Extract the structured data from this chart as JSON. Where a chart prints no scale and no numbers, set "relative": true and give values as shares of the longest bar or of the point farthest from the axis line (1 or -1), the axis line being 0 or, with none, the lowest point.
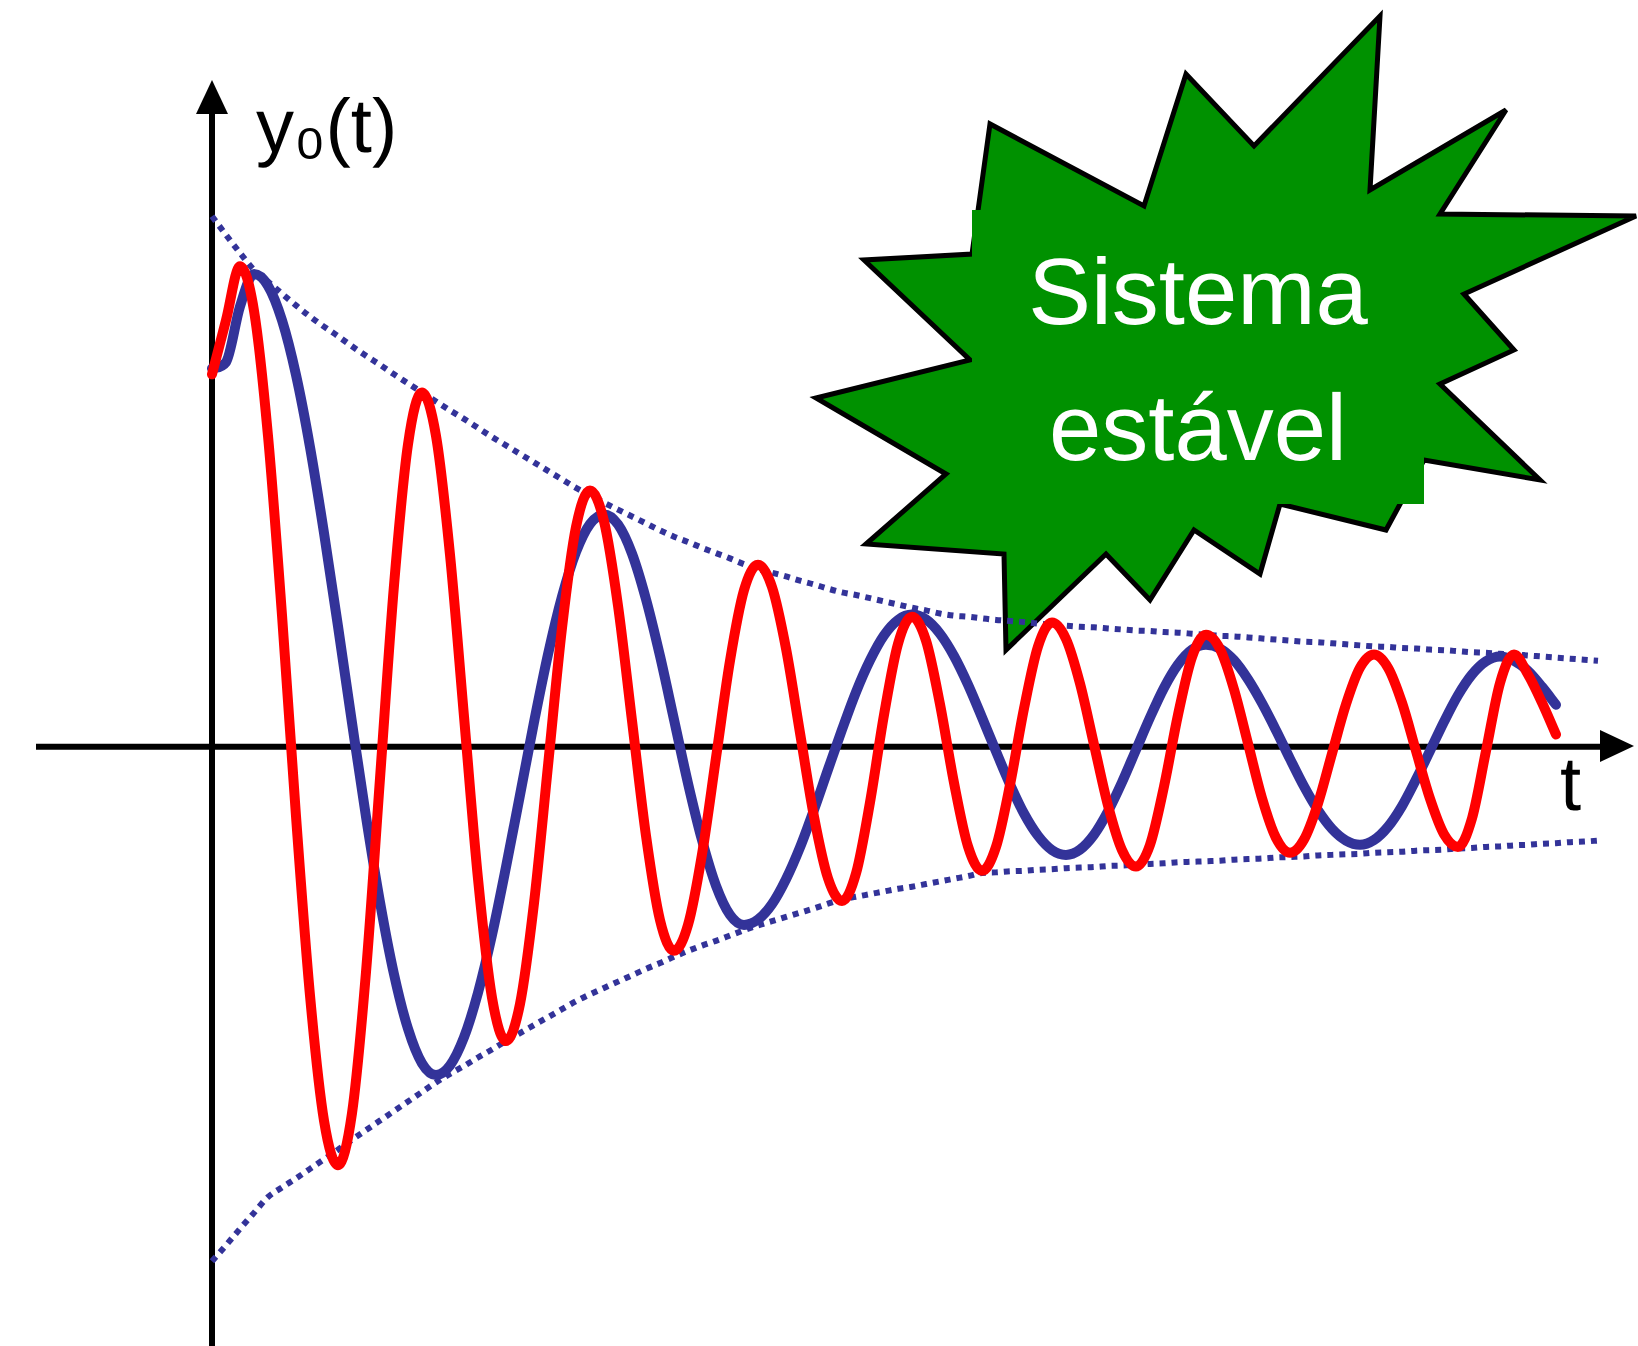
{
  "chart_data": {
    "type": "line",
    "xlabel": "t",
    "ylabel": "y₀(t)",
    "annotations": [
      "Sistema estável"
    ],
    "relative": true,
    "marker": "none",
    "legend": false,
    "categories": [
      null,
      null,
      null,
      null,
      null,
      null,
      null,
      null,
      null,
      null,
      null,
      null,
      null,
      null,
      null,
      null,
      null,
      null,
      null,
      null,
      null,
      null,
      null,
      null,
      null,
      null,
      null,
      null,
      null,
      null,
      null,
      null,
      null,
      null,
      null,
      null,
      null,
      null,
      null,
      null,
      null,
      null,
      null,
      null,
      null,
      null,
      null,
      null,
      null,
      null,
      null,
      null,
      null,
      null,
      null,
      null,
      null,
      null,
      null,
      null,
      null,
      null,
      null,
      null,
      null,
      null,
      null,
      null,
      null,
      null,
      null,
      null,
      null,
      null,
      null,
      null,
      null,
      null,
      null,
      null,
      null,
      null,
      null,
      null,
      null,
      null,
      null,
      null,
      null,
      null,
      null,
      null,
      null,
      null,
      null,
      null,
      null,
      null,
      null,
      null
    ],
    "series": [
      {
        "color": "#333399",
        "line_style": "dotted",
        "values": [
          1.0,
          0.965,
          0.931,
          0.899,
          0.877,
          0.854,
          0.832,
          0.811,
          0.792,
          0.774,
          0.755,
          0.737,
          0.72,
          0.702,
          0.685,
          0.668,
          0.651,
          0.634,
          0.618,
          0.601,
          0.584,
          0.568,
          0.552,
          0.536,
          0.52,
          0.504,
          0.488,
          0.474,
          0.46,
          0.447,
          0.434,
          0.421,
          0.408,
          0.396,
          0.386,
          0.375,
          0.365,
          0.355,
          0.344,
          0.335,
          0.328,
          0.321,
          0.313,
          0.306,
          0.298,
          0.291,
          0.286,
          0.28,
          0.274,
          0.268,
          0.262,
          0.257,
          0.251,
          0.247,
          0.245,
          0.242,
          0.239,
          0.237,
          0.235,
          0.232,
          0.23,
          0.228,
          0.226,
          0.225,
          0.223,
          0.221,
          0.219,
          0.218,
          0.216,
          0.215,
          0.213,
          0.211,
          0.209,
          0.208,
          0.206,
          0.204,
          0.202,
          0.2,
          0.198,
          0.197,
          0.195,
          0.193,
          0.191,
          0.189,
          0.188,
          0.186,
          0.185,
          0.183,
          0.182,
          0.18,
          0.178,
          0.177,
          0.175,
          0.174,
          0.172,
          0.17,
          0.168,
          0.166,
          0.164,
          0.162
        ]
      },
      {
        "color": "#333399",
        "line_style": "dotted",
        "values": [
          -0.97,
          -0.94,
          -0.909,
          -0.879,
          -0.849,
          -0.831,
          -0.814,
          -0.796,
          -0.778,
          -0.76,
          -0.741,
          -0.723,
          -0.705,
          -0.687,
          -0.669,
          -0.651,
          -0.633,
          -0.617,
          -0.602,
          -0.586,
          -0.571,
          -0.555,
          -0.54,
          -0.525,
          -0.51,
          -0.495,
          -0.48,
          -0.467,
          -0.455,
          -0.443,
          -0.431,
          -0.419,
          -0.408,
          -0.396,
          -0.385,
          -0.375,
          -0.366,
          -0.356,
          -0.346,
          -0.337,
          -0.329,
          -0.321,
          -0.313,
          -0.305,
          -0.296,
          -0.288,
          -0.283,
          -0.278,
          -0.273,
          -0.268,
          -0.264,
          -0.259,
          -0.254,
          -0.249,
          -0.244,
          -0.238,
          -0.237,
          -0.235,
          -0.234,
          -0.232,
          -0.231,
          -0.229,
          -0.228,
          -0.227,
          -0.225,
          -0.224,
          -0.223,
          -0.221,
          -0.22,
          -0.218,
          -0.217,
          -0.216,
          -0.215,
          -0.213,
          -0.212,
          -0.211,
          -0.209,
          -0.208,
          -0.207,
          -0.205,
          -0.204,
          -0.203,
          -0.202,
          -0.2,
          -0.199,
          -0.198,
          -0.196,
          -0.195,
          -0.194,
          -0.192,
          -0.191,
          -0.189,
          -0.188,
          -0.186,
          -0.185,
          -0.183,
          -0.182,
          -0.18,
          -0.179,
          -0.177
        ]
      },
      {
        "color": "#333399",
        "line_style": "solid",
        "values": [
          0.713,
          0.725,
          0.83,
          0.891,
          0.869,
          0.804,
          0.701,
          0.565,
          0.403,
          0.227,
          0.045,
          -0.132,
          -0.293,
          -0.429,
          -0.532,
          -0.597,
          -0.619,
          -0.601,
          -0.548,
          -0.464,
          -0.355,
          -0.227,
          -0.091,
          0.046,
          0.174,
          0.283,
          0.367,
          0.42,
          0.438,
          0.419,
          0.364,
          0.278,
          0.171,
          0.051,
          -0.069,
          -0.176,
          -0.262,
          -0.317,
          -0.336,
          -0.326,
          -0.297,
          -0.25,
          -0.19,
          -0.119,
          -0.043,
          0.032,
          0.103,
          0.163,
          0.21,
          0.239,
          0.249,
          0.24,
          0.213,
          0.171,
          0.117,
          0.055,
          -0.009,
          -0.071,
          -0.126,
          -0.168,
          -0.195,
          -0.204,
          -0.194,
          -0.166,
          -0.122,
          -0.067,
          -0.006,
          0.055,
          0.111,
          0.155,
          0.183,
          0.192,
          0.185,
          0.163,
          0.127,
          0.082,
          0.031,
          -0.023,
          -0.075,
          -0.12,
          -0.155,
          -0.177,
          -0.185,
          -0.176,
          -0.151,
          -0.112,
          -0.062,
          -0.008,
          0.047,
          0.097,
          0.136,
          0.161,
          0.17,
          0.162,
          0.143,
          0.113,
          0.079,
          null,
          null,
          null
        ]
      },
      {
        "color": "#ff0000",
        "line_style": "solid",
        "values": [
          0.702,
          0.804,
          0.906,
          0.822,
          0.586,
          0.248,
          -0.131,
          -0.469,
          -0.705,
          -0.789,
          -0.691,
          -0.425,
          -0.06,
          0.304,
          0.57,
          0.668,
          0.586,
          0.362,
          0.057,
          -0.249,
          -0.473,
          -0.555,
          -0.485,
          -0.295,
          -0.036,
          0.224,
          0.414,
          0.483,
          0.425,
          0.266,
          0.049,
          -0.168,
          -0.327,
          -0.385,
          -0.336,
          -0.203,
          -0.021,
          0.162,
          0.295,
          0.343,
          0.301,
          0.185,
          0.026,
          -0.132,
          -0.248,
          -0.291,
          -0.239,
          -0.105,
          0.06,
          0.194,
          0.245,
          0.2,
          0.08,
          -0.068,
          -0.188,
          -0.234,
          -0.189,
          -0.072,
          0.072,
          0.189,
          0.234,
          0.203,
          0.119,
          0.004,
          -0.111,
          -0.195,
          -0.226,
          -0.185,
          -0.075,
          0.06,
          0.169,
          0.211,
          0.184,
          0.108,
          0.006,
          -0.097,
          -0.172,
          -0.2,
          -0.175,
          -0.107,
          -0.013,
          0.08,
          0.149,
          0.174,
          0.149,
          0.083,
          -0.008,
          -0.098,
          -0.165,
          -0.189,
          -0.135,
          -0.008,
          0.12,
          0.174,
          0.136,
          0.083,
          0.023,
          null,
          null,
          null
        ]
      }
    ]
  }
}
